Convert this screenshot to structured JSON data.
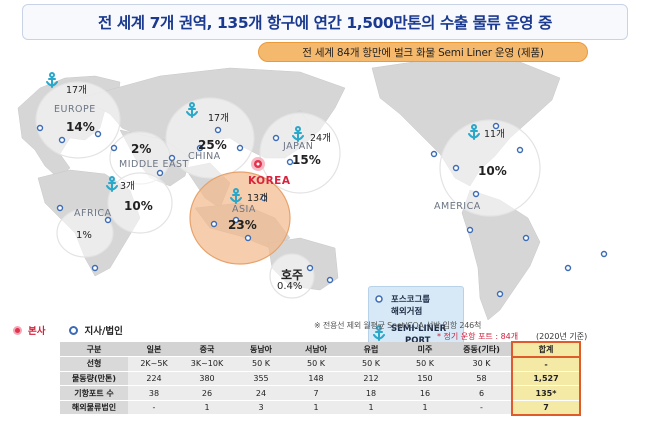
{
  "title": "전 세계 7개 권역, 135개 항구에 연간 1,500만톤의 수출 물류 운영 중",
  "subtitle": "전 세계 84개 항만에 벌크 화물 Semi Liner 운영 (제품)",
  "colors": {
    "title_text": "#1b3a8f",
    "pill": "#f5b96e",
    "hq": "#e2334f",
    "branch": "#3b6bb5",
    "asia_circle": "#f3b98a",
    "anchor": "#2aa7c9",
    "total_border": "#e05b2a"
  },
  "map": {
    "regions": {
      "europe": {
        "label": "EUROPE",
        "pct": "14%",
        "ports": "17개"
      },
      "middle_east": {
        "label": "MIDDLE EAST",
        "pct": "2%"
      },
      "china": {
        "label": "CHINA",
        "pct": "25%",
        "ports": "17개"
      },
      "japan": {
        "label": "JAPAN",
        "pct": "15%",
        "ports": "24개"
      },
      "america": {
        "label": "AMERICA",
        "pct": "10%",
        "ports": "11개"
      },
      "africa": {
        "label": "AFRICA",
        "pct": "1%"
      },
      "india": {
        "pct": "10%",
        "ports": "3개"
      },
      "asia": {
        "label": "ASIA",
        "pct": "23%",
        "ports": "13개"
      },
      "oceania": {
        "label": "호주",
        "pct": "0.4%"
      }
    },
    "korea_label": "KOREA",
    "legend": {
      "office_label": "포스코그룹",
      "office_label2": "해외거점",
      "port_label": "SEMI-LINER",
      "port_label2": "PORT"
    }
  },
  "hq_legend": {
    "hq": "본사",
    "branch": "지사/법인"
  },
  "notes": {
    "vessels": "※ 전용선 제외 월평균 Spot/COA 선박 입항 246척",
    "regular_ports": "* 정기 운항 포트 : 84개",
    "basis": "(2020년 기준)"
  },
  "table": {
    "headers": [
      "구분",
      "일본",
      "중국",
      "동남아",
      "서남아",
      "유럽",
      "미주",
      "중동(기타)",
      "합계"
    ],
    "rows": [
      {
        "label": "선형",
        "values": [
          "2K~5K",
          "3K~10K",
          "50 K",
          "50 K",
          "50 K",
          "50 K",
          "30 K",
          "-"
        ]
      },
      {
        "label": "물동량(만톤)",
        "values": [
          "224",
          "380",
          "355",
          "148",
          "212",
          "150",
          "58",
          "1,527"
        ]
      },
      {
        "label": "기항포트 수",
        "values": [
          "38",
          "26",
          "24",
          "7",
          "18",
          "16",
          "6",
          "135*"
        ]
      },
      {
        "label": "해외물류법인",
        "values": [
          "-",
          "1",
          "3",
          "1",
          "1",
          "1",
          "-",
          "7"
        ]
      }
    ]
  }
}
